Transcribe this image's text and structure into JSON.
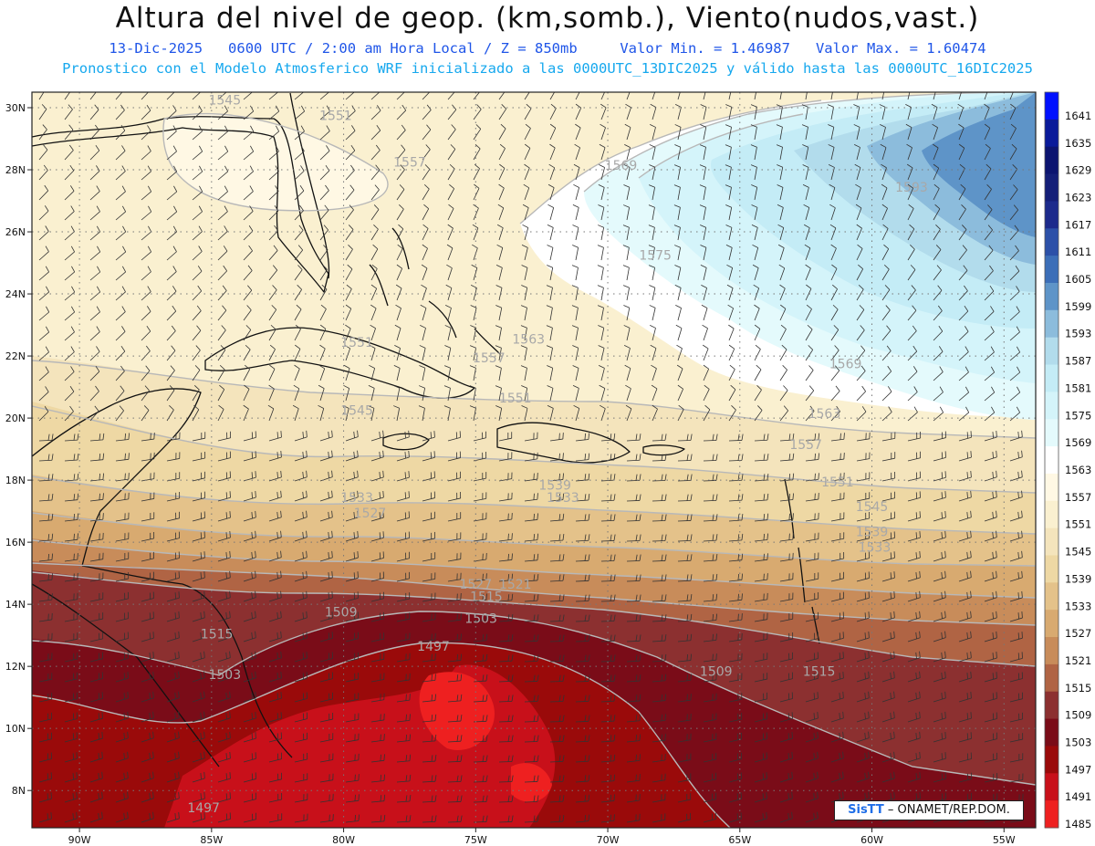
{
  "header": {
    "title": "Altura del nivel de geop. (km,somb.), Viento(nudos,vast.)",
    "date": "13-Dic-2025",
    "time": "0600 UTC / 2:00 am Hora Local / Z = 850mb",
    "valor_min": "Valor Min. = 1.46987",
    "valor_max": "Valor Max. = 1.60474",
    "model_line": "Pronostico con el Modelo Atmosferico WRF inicializado a las 0000UTC_13DIC2025 y válido hasta las  0000UTC_16DIC2025"
  },
  "axes": {
    "lat_labels": [
      "30N",
      "28N",
      "26N",
      "24N",
      "22N",
      "20N",
      "18N",
      "16N",
      "14N",
      "12N",
      "10N",
      "8N"
    ],
    "lat_values": [
      30,
      28,
      26,
      24,
      22,
      20,
      18,
      16,
      14,
      12,
      10,
      8
    ],
    "lon_labels": [
      "90W",
      "85W",
      "80W",
      "75W",
      "70W",
      "65W",
      "60W",
      "55W"
    ],
    "lon_values": [
      -90,
      -85,
      -80,
      -75,
      -70,
      -65,
      -60,
      -55
    ],
    "lat_range": [
      6.8,
      30.5
    ],
    "lon_range": [
      -91.8,
      -53.8
    ]
  },
  "colorbar": {
    "levels": [
      "1641",
      "1635",
      "1629",
      "1623",
      "1617",
      "1611",
      "1605",
      "1599",
      "1593",
      "1587",
      "1581",
      "1575",
      "1569",
      "1563",
      "1557",
      "1551",
      "1545",
      "1539",
      "1533",
      "1527",
      "1521",
      "1515",
      "1509",
      "1503",
      "1497",
      "1491",
      "1485"
    ],
    "colors": [
      "#0010ff",
      "#0a1a9a",
      "#0c1470",
      "#141e78",
      "#1c2a8c",
      "#2c50a8",
      "#3c6eb8",
      "#5e94c8",
      "#8cbcdc",
      "#b2dcec",
      "#c4ecf6",
      "#d4f4fa",
      "#e4fafc",
      "#ffffff",
      "#fff8e4",
      "#faf0d0",
      "#f4e4bc",
      "#eed8a4",
      "#e4c28a",
      "#d8aa70",
      "#c88c5a",
      "#b06444",
      "#8c3030",
      "#7a0c18",
      "#9a0a0a",
      "#c8101a",
      "#ee2020"
    ]
  },
  "contour_labels": [
    {
      "text": "1545",
      "lon": -84.5,
      "lat": 30.1
    },
    {
      "text": "1551",
      "lon": -80.3,
      "lat": 29.6
    },
    {
      "text": "1557",
      "lon": -77.5,
      "lat": 28.1
    },
    {
      "text": "1569",
      "lon": -69.5,
      "lat": 28.0
    },
    {
      "text": "1593",
      "lon": -58.5,
      "lat": 27.3
    },
    {
      "text": "1575",
      "lon": -68.2,
      "lat": 25.1
    },
    {
      "text": "1563",
      "lon": -73.0,
      "lat": 22.4
    },
    {
      "text": "1557",
      "lon": -74.5,
      "lat": 21.8
    },
    {
      "text": "1551",
      "lon": -79.5,
      "lat": 22.3
    },
    {
      "text": "1551",
      "lon": -73.5,
      "lat": 20.5
    },
    {
      "text": "1545",
      "lon": -79.5,
      "lat": 20.1
    },
    {
      "text": "1569",
      "lon": -61.0,
      "lat": 21.6
    },
    {
      "text": "1563",
      "lon": -61.8,
      "lat": 20.0
    },
    {
      "text": "1557",
      "lon": -62.5,
      "lat": 19.0
    },
    {
      "text": "1551",
      "lon": -61.3,
      "lat": 17.8
    },
    {
      "text": "1545",
      "lon": -60.0,
      "lat": 17.0
    },
    {
      "text": "1539",
      "lon": -60.0,
      "lat": 16.2
    },
    {
      "text": "1533",
      "lon": -59.9,
      "lat": 15.7
    },
    {
      "text": "1527",
      "lon": -75.0,
      "lat": 14.5
    },
    {
      "text": "1521",
      "lon": -73.5,
      "lat": 14.5
    },
    {
      "text": "1515",
      "lon": -74.6,
      "lat": 14.1
    },
    {
      "text": "1509",
      "lon": -80.1,
      "lat": 13.6
    },
    {
      "text": "1503",
      "lon": -74.8,
      "lat": 13.4
    },
    {
      "text": "1497",
      "lon": -76.6,
      "lat": 12.5
    },
    {
      "text": "1509",
      "lon": -65.9,
      "lat": 11.7
    },
    {
      "text": "1515",
      "lon": -62.0,
      "lat": 11.7
    },
    {
      "text": "1503",
      "lon": -84.5,
      "lat": 11.6
    },
    {
      "text": "1515",
      "lon": -84.8,
      "lat": 12.9
    },
    {
      "text": "1497",
      "lon": -85.3,
      "lat": 7.3
    },
    {
      "text": "1533",
      "lon": -79.5,
      "lat": 17.3
    },
    {
      "text": "1539",
      "lon": -72.0,
      "lat": 17.7
    },
    {
      "text": "1533",
      "lon": -71.7,
      "lat": 17.3
    },
    {
      "text": "1527",
      "lon": -79.0,
      "lat": 16.8
    }
  ],
  "credit": {
    "brand": "SisTT",
    "rest": " – ONAMET/REP.DOM."
  }
}
